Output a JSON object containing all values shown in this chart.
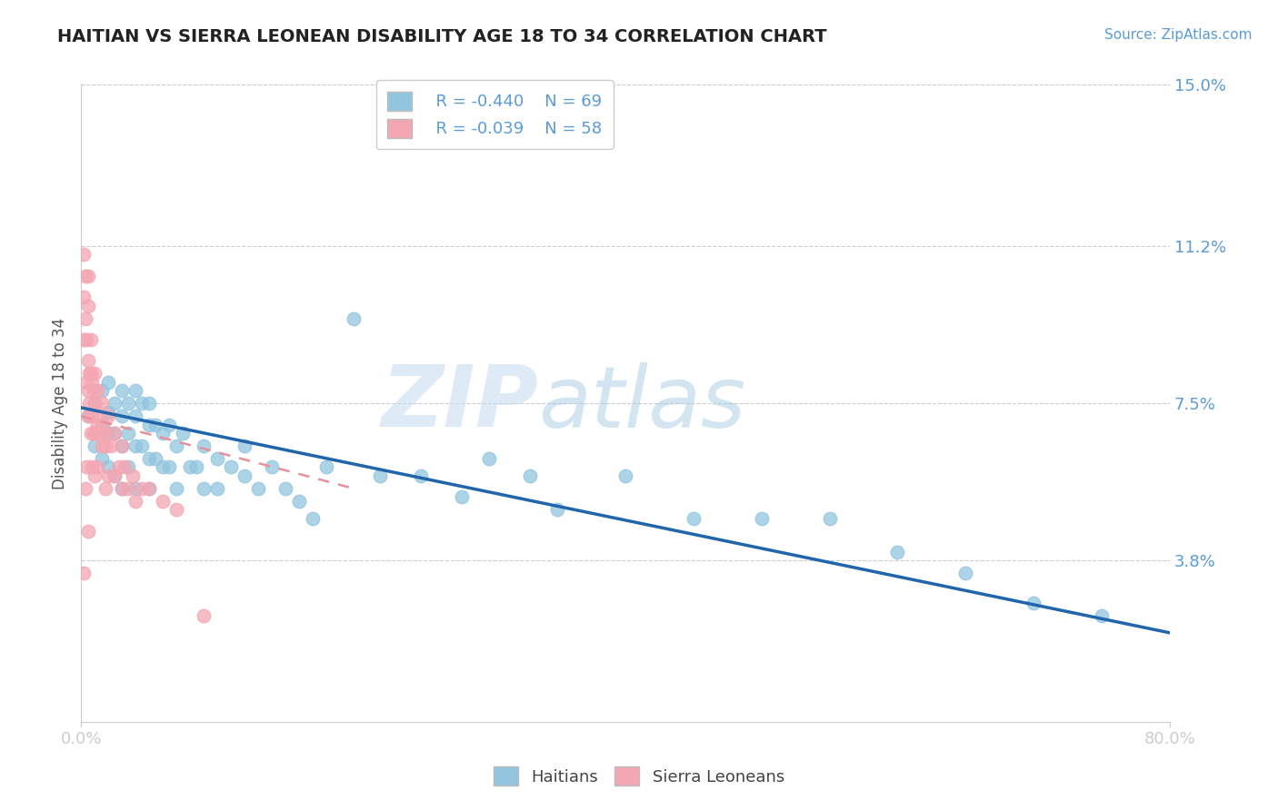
{
  "title": "HAITIAN VS SIERRA LEONEAN DISABILITY AGE 18 TO 34 CORRELATION CHART",
  "source": "Source: ZipAtlas.com",
  "ylabel": "Disability Age 18 to 34",
  "watermark_zip": "ZIP",
  "watermark_atlas": "atlas",
  "xmin": 0.0,
  "xmax": 0.8,
  "ymin": 0.0,
  "ymax": 0.15,
  "yticks": [
    0.038,
    0.075,
    0.112,
    0.15
  ],
  "ytick_labels": [
    "3.8%",
    "7.5%",
    "11.2%",
    "15.0%"
  ],
  "xticks": [
    0.0,
    0.8
  ],
  "xtick_labels": [
    "0.0%",
    "80.0%"
  ],
  "legend_r_blue": "R = -0.440",
  "legend_n_blue": "N = 69",
  "legend_r_pink": "R = -0.039",
  "legend_n_pink": "N = 58",
  "blue_color": "#92c5de",
  "pink_color": "#f4a6b2",
  "trend_blue_color": "#2166ac",
  "trend_pink_color": "#e8909a",
  "title_color": "#222222",
  "axis_label_color": "#5b9bd5",
  "ylabel_color": "#555555",
  "background_color": "#ffffff",
  "grid_color": "#cccccc",
  "blue_trend_start_x": 0.0,
  "blue_trend_end_x": 0.8,
  "blue_trend_start_y": 0.074,
  "blue_trend_end_y": 0.021,
  "pink_trend_start_x": 0.0,
  "pink_trend_end_x": 0.2,
  "pink_trend_start_y": 0.072,
  "pink_trend_end_y": 0.055,
  "blue_scatter_x": [
    0.005,
    0.01,
    0.01,
    0.015,
    0.015,
    0.015,
    0.02,
    0.02,
    0.02,
    0.02,
    0.025,
    0.025,
    0.025,
    0.03,
    0.03,
    0.03,
    0.03,
    0.035,
    0.035,
    0.035,
    0.04,
    0.04,
    0.04,
    0.04,
    0.045,
    0.045,
    0.05,
    0.05,
    0.05,
    0.05,
    0.055,
    0.055,
    0.06,
    0.06,
    0.065,
    0.065,
    0.07,
    0.07,
    0.075,
    0.08,
    0.085,
    0.09,
    0.09,
    0.1,
    0.1,
    0.11,
    0.12,
    0.12,
    0.13,
    0.14,
    0.15,
    0.16,
    0.17,
    0.18,
    0.2,
    0.22,
    0.25,
    0.28,
    0.3,
    0.33,
    0.35,
    0.4,
    0.45,
    0.5,
    0.55,
    0.6,
    0.65,
    0.7,
    0.75
  ],
  "blue_scatter_y": [
    0.072,
    0.075,
    0.065,
    0.078,
    0.07,
    0.062,
    0.08,
    0.073,
    0.068,
    0.06,
    0.075,
    0.068,
    0.058,
    0.078,
    0.072,
    0.065,
    0.055,
    0.075,
    0.068,
    0.06,
    0.078,
    0.072,
    0.065,
    0.055,
    0.075,
    0.065,
    0.075,
    0.07,
    0.062,
    0.055,
    0.07,
    0.062,
    0.068,
    0.06,
    0.07,
    0.06,
    0.065,
    0.055,
    0.068,
    0.06,
    0.06,
    0.065,
    0.055,
    0.062,
    0.055,
    0.06,
    0.065,
    0.058,
    0.055,
    0.06,
    0.055,
    0.052,
    0.048,
    0.06,
    0.095,
    0.058,
    0.058,
    0.053,
    0.062,
    0.058,
    0.05,
    0.058,
    0.048,
    0.048,
    0.048,
    0.04,
    0.035,
    0.028,
    0.025
  ],
  "pink_scatter_x": [
    0.002,
    0.002,
    0.002,
    0.002,
    0.003,
    0.003,
    0.003,
    0.004,
    0.004,
    0.004,
    0.005,
    0.005,
    0.005,
    0.005,
    0.005,
    0.005,
    0.006,
    0.006,
    0.007,
    0.007,
    0.007,
    0.008,
    0.008,
    0.008,
    0.009,
    0.009,
    0.01,
    0.01,
    0.01,
    0.01,
    0.012,
    0.012,
    0.012,
    0.013,
    0.014,
    0.015,
    0.015,
    0.016,
    0.017,
    0.018,
    0.018,
    0.02,
    0.02,
    0.022,
    0.025,
    0.025,
    0.028,
    0.03,
    0.03,
    0.032,
    0.035,
    0.038,
    0.04,
    0.045,
    0.05,
    0.06,
    0.07,
    0.09
  ],
  "pink_scatter_y": [
    0.11,
    0.1,
    0.09,
    0.035,
    0.105,
    0.095,
    0.055,
    0.09,
    0.08,
    0.06,
    0.105,
    0.098,
    0.085,
    0.078,
    0.072,
    0.045,
    0.082,
    0.075,
    0.09,
    0.082,
    0.068,
    0.08,
    0.072,
    0.06,
    0.078,
    0.068,
    0.082,
    0.075,
    0.068,
    0.058,
    0.078,
    0.07,
    0.06,
    0.072,
    0.068,
    0.075,
    0.065,
    0.07,
    0.068,
    0.065,
    0.055,
    0.072,
    0.058,
    0.065,
    0.068,
    0.058,
    0.06,
    0.065,
    0.055,
    0.06,
    0.055,
    0.058,
    0.052,
    0.055,
    0.055,
    0.052,
    0.05,
    0.025
  ]
}
